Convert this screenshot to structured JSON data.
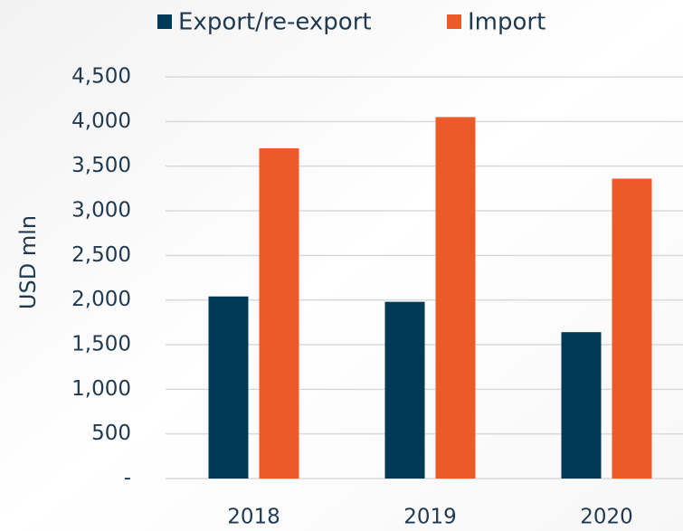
{
  "chart_data": {
    "type": "bar",
    "y_axis_label": "USD mln",
    "categories": [
      "2018",
      "2019",
      "2020"
    ],
    "series": [
      {
        "name": "Export/re-export",
        "color": "#003a57",
        "values": [
          2040,
          1980,
          1640
        ]
      },
      {
        "name": "Import",
        "color": "#ec5a27",
        "values": [
          3700,
          4050,
          3360
        ]
      }
    ],
    "ylim": [
      0,
      4500
    ],
    "yticks": [
      {
        "value": 0,
        "label": "-"
      },
      500,
      {
        "value": 1000,
        "label": "1,000"
      },
      {
        "value": 1500,
        "label": "1,500"
      },
      {
        "value": 2000,
        "label": "2,000"
      },
      {
        "value": 2500,
        "label": "2,500"
      },
      {
        "value": 3000,
        "label": "3,000"
      },
      {
        "value": 3500,
        "label": "3,500"
      },
      {
        "value": 4000,
        "label": "4,000"
      },
      {
        "value": 4500,
        "label": "4,500"
      }
    ],
    "grid": true,
    "legend": "top"
  }
}
